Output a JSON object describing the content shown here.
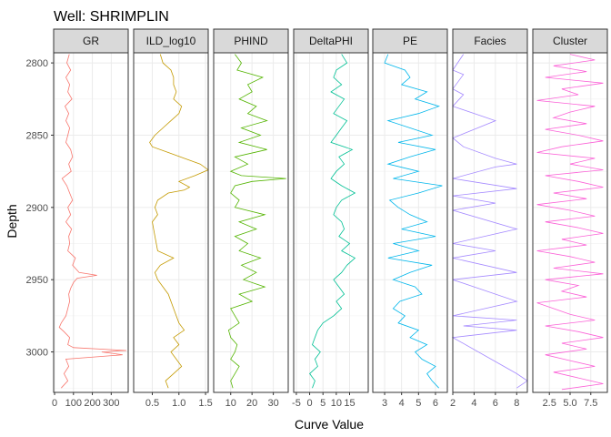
{
  "title": "Well: SHRIMPLIN",
  "chart_data": {
    "type": "line",
    "title": "Well: SHRIMPLIN",
    "xlabel": "Curve Value",
    "ylabel": "Depth",
    "y_reversed": true,
    "ylim": [
      2793,
      3028
    ],
    "y_ticks": [
      2800,
      2850,
      2900,
      2950,
      3000
    ],
    "grid": true,
    "legend": "none",
    "facets": [
      {
        "name": "GR",
        "color": "#f8766d",
        "xlim": [
          -5,
          390
        ],
        "x_ticks": [
          {
            "v": 0,
            "l": "0"
          },
          {
            "v": 100,
            "l": "100"
          },
          {
            "v": 200,
            "l": "200"
          },
          {
            "v": 300,
            "l": "300"
          }
        ],
        "depth": [
          2794,
          2800,
          2805,
          2810,
          2815,
          2820,
          2825,
          2830,
          2835,
          2840,
          2845,
          2850,
          2855,
          2860,
          2865,
          2870,
          2875,
          2880,
          2885,
          2890,
          2895,
          2900,
          2905,
          2910,
          2915,
          2920,
          2925,
          2930,
          2935,
          2940,
          2945,
          2947,
          2949,
          2952,
          2956,
          2960,
          2965,
          2970,
          2975,
          2980,
          2983,
          2986,
          2990,
          2995,
          2997,
          2999,
          3000,
          3002,
          3005,
          3010,
          3015,
          3020,
          3025
        ],
        "values": [
          78,
          65,
          85,
          60,
          80,
          70,
          92,
          55,
          75,
          60,
          80,
          70,
          60,
          85,
          95,
          75,
          88,
          40,
          65,
          80,
          95,
          70,
          85,
          60,
          90,
          75,
          80,
          70,
          110,
          95,
          130,
          225,
          120,
          100,
          85,
          75,
          80,
          70,
          60,
          35,
          25,
          50,
          80,
          70,
          100,
          380,
          250,
          360,
          60,
          75,
          50,
          70,
          35
        ]
      },
      {
        "name": "ILD_log10",
        "color": "#c49a00",
        "xlim": [
          0.15,
          1.55
        ],
        "x_ticks": [
          {
            "v": 0.5,
            "l": "0.5"
          },
          {
            "v": 1.0,
            "l": "1.0"
          },
          {
            "v": 1.5,
            "l": "1.5"
          }
        ],
        "depth": [
          2794,
          2800,
          2805,
          2810,
          2815,
          2820,
          2825,
          2830,
          2835,
          2840,
          2845,
          2850,
          2855,
          2858,
          2862,
          2866,
          2870,
          2874,
          2878,
          2882,
          2886,
          2888,
          2890,
          2895,
          2900,
          2905,
          2910,
          2920,
          2930,
          2935,
          2940,
          2945,
          2950,
          2955,
          2960,
          2970,
          2980,
          2985,
          2990,
          2995,
          3000,
          3005,
          3010,
          3015,
          3020,
          3025
        ],
        "values": [
          0.65,
          0.7,
          0.85,
          0.9,
          0.9,
          0.95,
          0.9,
          1.05,
          1.0,
          0.85,
          0.7,
          0.55,
          0.45,
          0.5,
          0.8,
          1.1,
          1.4,
          1.55,
          1.3,
          1.0,
          1.2,
          1.1,
          0.8,
          0.6,
          0.55,
          0.6,
          0.5,
          0.55,
          0.6,
          0.9,
          0.65,
          0.55,
          0.6,
          0.7,
          0.8,
          0.9,
          1.0,
          1.1,
          0.9,
          1.0,
          0.85,
          0.95,
          1.05,
          0.9,
          0.75,
          0.8
        ]
      },
      {
        "name": "PHIND",
        "color": "#53b400",
        "xlim": [
          2,
          37
        ],
        "x_ticks": [
          {
            "v": 10,
            "l": "10"
          },
          {
            "v": 20,
            "l": "20"
          },
          {
            "v": 30,
            "l": "30"
          }
        ],
        "depth": [
          2794,
          2800,
          2805,
          2810,
          2815,
          2820,
          2825,
          2830,
          2835,
          2840,
          2845,
          2850,
          2855,
          2860,
          2865,
          2870,
          2875,
          2878,
          2880,
          2882,
          2885,
          2890,
          2895,
          2900,
          2905,
          2910,
          2915,
          2920,
          2925,
          2930,
          2935,
          2940,
          2945,
          2950,
          2955,
          2960,
          2965,
          2970,
          2975,
          2980,
          2985,
          2990,
          2995,
          3000,
          3005,
          3010,
          3015,
          3020,
          3025
        ],
        "values": [
          12,
          15,
          13,
          25,
          18,
          20,
          14,
          22,
          18,
          27,
          15,
          24,
          14,
          27,
          12,
          18,
          10,
          15,
          36,
          20,
          12,
          10,
          14,
          12,
          26,
          14,
          22,
          12,
          18,
          14,
          24,
          15,
          22,
          16,
          26,
          14,
          20,
          10,
          12,
          14,
          9,
          10,
          13,
          12,
          10,
          14,
          12,
          10,
          11
        ]
      },
      {
        "name": "DeltaPHI",
        "color": "#00c094",
        "xlim": [
          -6,
          22
        ],
        "x_ticks": [
          {
            "v": -5,
            "l": "-5"
          },
          {
            "v": 0,
            "l": "0"
          },
          {
            "v": 5,
            "l": "5"
          },
          {
            "v": 10,
            "l": "10"
          },
          {
            "v": 15,
            "l": "15"
          }
        ],
        "depth": [
          2794,
          2800,
          2805,
          2810,
          2815,
          2820,
          2825,
          2830,
          2835,
          2840,
          2845,
          2850,
          2855,
          2860,
          2865,
          2870,
          2875,
          2880,
          2885,
          2890,
          2895,
          2900,
          2905,
          2910,
          2915,
          2920,
          2925,
          2930,
          2935,
          2940,
          2945,
          2950,
          2955,
          2960,
          2965,
          2970,
          2975,
          2980,
          2985,
          2990,
          2995,
          3000,
          3005,
          3010,
          3015,
          3020,
          3025
        ],
        "values": [
          12,
          14,
          10,
          9,
          12,
          8,
          13,
          11,
          9,
          14,
          12,
          10,
          8,
          16,
          11,
          13,
          10,
          8,
          12,
          17,
          12,
          10,
          9,
          12,
          13,
          11,
          15,
          12,
          17,
          14,
          12,
          9,
          11,
          13,
          10,
          12,
          9,
          5,
          3,
          2,
          1,
          4,
          2,
          3,
          0,
          2,
          1
        ]
      },
      {
        "name": "PE",
        "color": "#00b6eb",
        "xlim": [
          2.3,
          6.7
        ],
        "x_ticks": [
          {
            "v": 3,
            "l": "3"
          },
          {
            "v": 4,
            "l": "4"
          },
          {
            "v": 5,
            "l": "5"
          },
          {
            "v": 6,
            "l": "6"
          }
        ],
        "depth": [
          2794,
          2800,
          2805,
          2810,
          2815,
          2820,
          2825,
          2830,
          2835,
          2840,
          2845,
          2850,
          2855,
          2860,
          2865,
          2870,
          2875,
          2880,
          2885,
          2890,
          2895,
          2900,
          2905,
          2910,
          2915,
          2920,
          2925,
          2930,
          2935,
          2940,
          2945,
          2950,
          2955,
          2960,
          2965,
          2970,
          2975,
          2980,
          2985,
          2990,
          2995,
          3000,
          3005,
          3010,
          3015,
          3020,
          3025
        ],
        "values": [
          3.2,
          3.0,
          4.2,
          4.5,
          4.0,
          5.5,
          4.8,
          6.2,
          5.0,
          3.2,
          4.5,
          5.8,
          3.8,
          6.0,
          4.5,
          3.2,
          5.0,
          3.5,
          6.4,
          5.0,
          3.3,
          3.8,
          4.5,
          5.5,
          4.0,
          6.0,
          3.5,
          5.0,
          3.2,
          5.8,
          4.5,
          3.5,
          4.8,
          5.2,
          3.9,
          3.5,
          4.2,
          3.8,
          5.0,
          4.5,
          5.5,
          4.8,
          5.2,
          6.0,
          5.5,
          5.8,
          6.2
        ]
      },
      {
        "name": "Facies",
        "color": "#a58aff",
        "xlim": [
          2,
          9
        ],
        "x_ticks": [
          {
            "v": 2,
            "l": "2"
          },
          {
            "v": 4,
            "l": "4"
          },
          {
            "v": 6,
            "l": "6"
          },
          {
            "v": 8,
            "l": "8"
          }
        ],
        "depth": [
          2794,
          2805,
          2808,
          2818,
          2822,
          2830,
          2840,
          2852,
          2858,
          2866,
          2870,
          2872,
          2880,
          2887,
          2892,
          2897,
          2902,
          2915,
          2925,
          2930,
          2935,
          2945,
          2950,
          2965,
          2975,
          2978,
          2982,
          2985,
          2990,
          3015,
          3020,
          3025
        ],
        "values": [
          3,
          2,
          3,
          2,
          3,
          2,
          6,
          2,
          3,
          6,
          8,
          6,
          2,
          8,
          2,
          6,
          2,
          8,
          2,
          6,
          2,
          8,
          2,
          8,
          2,
          8,
          3,
          8,
          2,
          8,
          9,
          8
        ]
      },
      {
        "name": "Cluster",
        "color": "#fb61d7",
        "xlim": [
          0.5,
          9.5
        ],
        "x_ticks": [
          {
            "v": 2.5,
            "l": "2.5"
          },
          {
            "v": 5.0,
            "l": "5.0"
          },
          {
            "v": 7.5,
            "l": "7.5"
          }
        ],
        "depth": [
          2794,
          2798,
          2802,
          2806,
          2810,
          2814,
          2818,
          2822,
          2826,
          2830,
          2834,
          2838,
          2842,
          2846,
          2850,
          2854,
          2858,
          2862,
          2866,
          2870,
          2874,
          2878,
          2882,
          2886,
          2890,
          2894,
          2898,
          2902,
          2906,
          2910,
          2914,
          2918,
          2922,
          2926,
          2930,
          2934,
          2938,
          2942,
          2946,
          2950,
          2954,
          2958,
          2962,
          2966,
          2970,
          2974,
          2978,
          2982,
          2986,
          2990,
          2994,
          2998,
          3002,
          3006,
          3010,
          3014,
          3018,
          3022,
          3026
        ],
        "values": [
          5,
          8,
          3,
          7,
          2,
          9,
          4,
          6,
          1,
          8,
          5,
          3,
          7,
          2,
          6,
          9,
          4,
          1,
          8,
          5,
          9,
          2,
          6,
          9,
          3,
          7,
          1,
          5,
          8,
          2,
          6,
          9,
          4,
          7,
          1,
          5,
          8,
          3,
          9,
          2,
          6,
          4,
          7,
          1,
          3,
          5,
          8,
          2,
          6,
          9,
          4,
          7,
          2,
          5,
          8,
          3,
          6,
          9,
          4
        ]
      }
    ]
  }
}
